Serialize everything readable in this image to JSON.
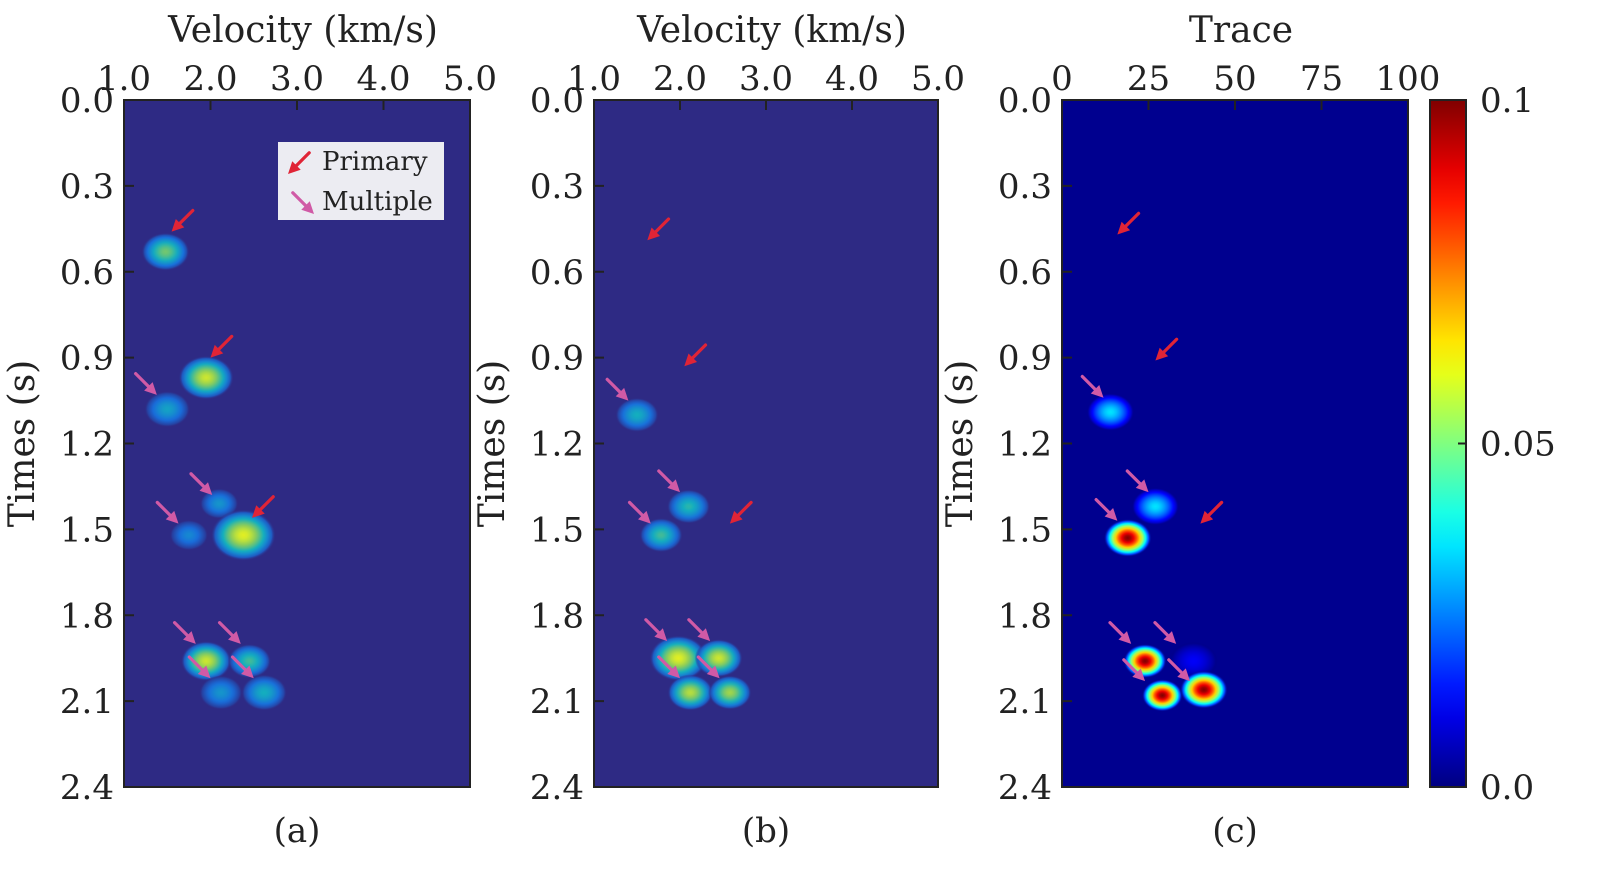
{
  "chart_data": [
    {
      "type": "heatmap",
      "panel": "(a)",
      "title": "",
      "xlabel": "Velocity (km/s)",
      "ylabel": "Times (s)",
      "xlim": [
        1.0,
        5.0
      ],
      "ylim": [
        0.0,
        2.4
      ],
      "xticks": [
        "1.0",
        "2.0",
        "3.0",
        "4.0",
        "5.0"
      ],
      "yticks": [
        "0.0",
        "0.3",
        "0.6",
        "0.9",
        "1.2",
        "1.5",
        "1.8",
        "2.1",
        "2.4"
      ],
      "background": "#2e2a84",
      "legend": {
        "placement": "top-right",
        "entries": [
          "Primary",
          "Multiple"
        ]
      },
      "blobs": [
        {
          "x": 1.48,
          "y": 0.53,
          "intensity": 0.07,
          "size": 1.0
        },
        {
          "x": 1.95,
          "y": 0.97,
          "intensity": 0.09,
          "size": 1.15
        },
        {
          "x": 1.5,
          "y": 1.08,
          "intensity": 0.045,
          "size": 0.95
        },
        {
          "x": 2.1,
          "y": 1.41,
          "intensity": 0.04,
          "size": 0.8
        },
        {
          "x": 1.75,
          "y": 1.52,
          "intensity": 0.035,
          "size": 0.8
        },
        {
          "x": 2.38,
          "y": 1.52,
          "intensity": 0.095,
          "size": 1.35
        },
        {
          "x": 1.95,
          "y": 1.96,
          "intensity": 0.09,
          "size": 1.05
        },
        {
          "x": 2.45,
          "y": 1.96,
          "intensity": 0.06,
          "size": 0.9
        },
        {
          "x": 2.12,
          "y": 2.07,
          "intensity": 0.04,
          "size": 0.9
        },
        {
          "x": 2.62,
          "y": 2.07,
          "intensity": 0.05,
          "size": 0.95
        }
      ],
      "arrows": [
        {
          "kind": "primary",
          "x": 1.55,
          "y": 0.46
        },
        {
          "kind": "primary",
          "x": 2.0,
          "y": 0.9
        },
        {
          "kind": "multiple",
          "x": 1.38,
          "y": 1.03
        },
        {
          "kind": "multiple",
          "x": 2.02,
          "y": 1.38
        },
        {
          "kind": "multiple",
          "x": 1.63,
          "y": 1.48
        },
        {
          "kind": "primary",
          "x": 2.48,
          "y": 1.46
        },
        {
          "kind": "multiple",
          "x": 1.83,
          "y": 1.9
        },
        {
          "kind": "multiple",
          "x": 2.35,
          "y": 1.9
        },
        {
          "kind": "multiple",
          "x": 2.0,
          "y": 2.02
        },
        {
          "kind": "multiple",
          "x": 2.5,
          "y": 2.02
        }
      ]
    },
    {
      "type": "heatmap",
      "panel": "(b)",
      "title": "",
      "xlabel": "Velocity (km/s)",
      "ylabel": "Times (s)",
      "xlim": [
        1.0,
        5.0
      ],
      "ylim": [
        0.0,
        2.4
      ],
      "xticks": [
        "1.0",
        "2.0",
        "3.0",
        "4.0",
        "5.0"
      ],
      "yticks": [
        "0.0",
        "0.3",
        "0.6",
        "0.9",
        "1.2",
        "1.5",
        "1.8",
        "2.1",
        "2.4"
      ],
      "background": "#2e2a84",
      "blobs": [
        {
          "x": 1.5,
          "y": 1.1,
          "intensity": 0.05,
          "size": 0.9
        },
        {
          "x": 2.1,
          "y": 1.42,
          "intensity": 0.055,
          "size": 0.9
        },
        {
          "x": 1.78,
          "y": 1.52,
          "intensity": 0.06,
          "size": 0.9
        },
        {
          "x": 1.98,
          "y": 1.95,
          "intensity": 0.095,
          "size": 1.2
        },
        {
          "x": 2.45,
          "y": 1.95,
          "intensity": 0.09,
          "size": 1.0
        },
        {
          "x": 2.12,
          "y": 2.07,
          "intensity": 0.085,
          "size": 0.95
        },
        {
          "x": 2.58,
          "y": 2.07,
          "intensity": 0.08,
          "size": 0.9
        }
      ],
      "arrows": [
        {
          "kind": "primary",
          "x": 1.62,
          "y": 0.49
        },
        {
          "kind": "primary",
          "x": 2.05,
          "y": 0.93
        },
        {
          "kind": "multiple",
          "x": 1.4,
          "y": 1.05
        },
        {
          "kind": "multiple",
          "x": 2.0,
          "y": 1.37
        },
        {
          "kind": "multiple",
          "x": 1.66,
          "y": 1.48
        },
        {
          "kind": "primary",
          "x": 2.58,
          "y": 1.48
        },
        {
          "kind": "multiple",
          "x": 1.85,
          "y": 1.89
        },
        {
          "kind": "multiple",
          "x": 2.35,
          "y": 1.89
        },
        {
          "kind": "multiple",
          "x": 2.0,
          "y": 2.02
        },
        {
          "kind": "multiple",
          "x": 2.46,
          "y": 2.02
        }
      ]
    },
    {
      "type": "heatmap",
      "panel": "(c)",
      "title": "",
      "xlabel": "Trace",
      "ylabel": "Times (s)",
      "xlim": [
        0,
        100
      ],
      "ylim": [
        0.0,
        2.4
      ],
      "xticks": [
        "0",
        "25",
        "50",
        "75",
        "100"
      ],
      "yticks": [
        "0.0",
        "0.3",
        "0.6",
        "0.9",
        "1.2",
        "1.5",
        "1.8",
        "2.1",
        "2.4"
      ],
      "background": "#00008f",
      "colorbar": {
        "ticks": [
          "0.1",
          "0.05",
          "0.0"
        ],
        "range": [
          0.0,
          0.1
        ],
        "colormap": "jet"
      },
      "blobs": [
        {
          "x": 14,
          "y": 1.09,
          "intensity": 0.035,
          "size": 1.0
        },
        {
          "x": 27,
          "y": 1.42,
          "intensity": 0.035,
          "size": 1.0
        },
        {
          "x": 19,
          "y": 1.53,
          "intensity": 0.1,
          "size": 1.0
        },
        {
          "x": 24,
          "y": 1.96,
          "intensity": 0.1,
          "size": 0.9
        },
        {
          "x": 38,
          "y": 1.96,
          "intensity": 0.012,
          "size": 1.0
        },
        {
          "x": 29,
          "y": 2.08,
          "intensity": 0.1,
          "size": 0.85
        },
        {
          "x": 41,
          "y": 2.06,
          "intensity": 0.1,
          "size": 1.0
        }
      ],
      "arrows": [
        {
          "kind": "primary",
          "x": 16,
          "y": 0.47
        },
        {
          "kind": "primary",
          "x": 27,
          "y": 0.91
        },
        {
          "kind": "multiple",
          "x": 12,
          "y": 1.04
        },
        {
          "kind": "multiple",
          "x": 25,
          "y": 1.37
        },
        {
          "kind": "multiple",
          "x": 16,
          "y": 1.47
        },
        {
          "kind": "primary",
          "x": 40,
          "y": 1.48
        },
        {
          "kind": "multiple",
          "x": 20,
          "y": 1.9
        },
        {
          "kind": "multiple",
          "x": 33,
          "y": 1.9
        },
        {
          "kind": "multiple",
          "x": 24,
          "y": 2.03
        },
        {
          "kind": "multiple",
          "x": 37,
          "y": 2.03
        }
      ]
    }
  ],
  "colors": {
    "primary": "#e02436",
    "multiple": "#d05aa6"
  }
}
